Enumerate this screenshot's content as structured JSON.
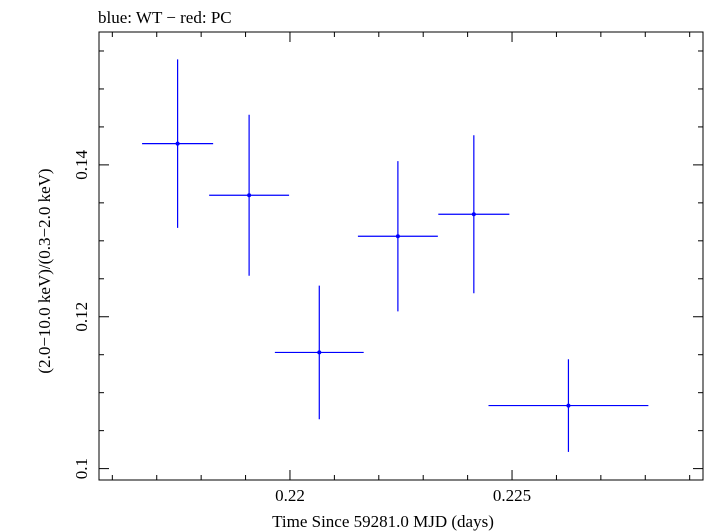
{
  "chart_data": {
    "type": "scatter",
    "title": "blue: WT − red: PC",
    "xlabel": "Time Since 59281.0 MJD (days)",
    "ylabel": "(2.0−10.0 keV)/(0.3−2.0 keV)",
    "xlim": [
      0.2157,
      0.2293
    ],
    "ylim": [
      0.0985,
      0.1575
    ],
    "x_major_ticks": [
      0.22,
      0.225
    ],
    "x_tick_labels": [
      "0.22",
      "0.225"
    ],
    "x_minor_step": 0.001,
    "y_major_ticks": [
      0.1,
      0.12,
      0.14
    ],
    "y_tick_labels": [
      "0.1",
      "0.12",
      "0.14"
    ],
    "y_minor_step": 0.005,
    "grid": false,
    "series": [
      {
        "color": "#0000ff",
        "points": [
          {
            "x": 0.21747,
            "y": 0.1428,
            "xerr": 0.0008,
            "yerr_up": 0.0111,
            "yerr_down": 0.0111
          },
          {
            "x": 0.21908,
            "y": 0.136,
            "xerr": 0.0009,
            "yerr_up": 0.0106,
            "yerr_down": 0.0106
          },
          {
            "x": 0.22066,
            "y": 0.1153,
            "xerr": 0.001,
            "yerr_up": 0.0088,
            "yerr_down": 0.0088
          },
          {
            "x": 0.22243,
            "y": 0.1306,
            "xerr": 0.0009,
            "yerr_up": 0.0099,
            "yerr_down": 0.0099
          },
          {
            "x": 0.22414,
            "y": 0.1335,
            "xerr": 0.0008,
            "yerr_up": 0.0104,
            "yerr_down": 0.0104
          },
          {
            "x": 0.22627,
            "y": 0.1083,
            "xerr": 0.0018,
            "yerr_up": 0.0061,
            "yerr_down": 0.0061
          }
        ]
      }
    ]
  }
}
